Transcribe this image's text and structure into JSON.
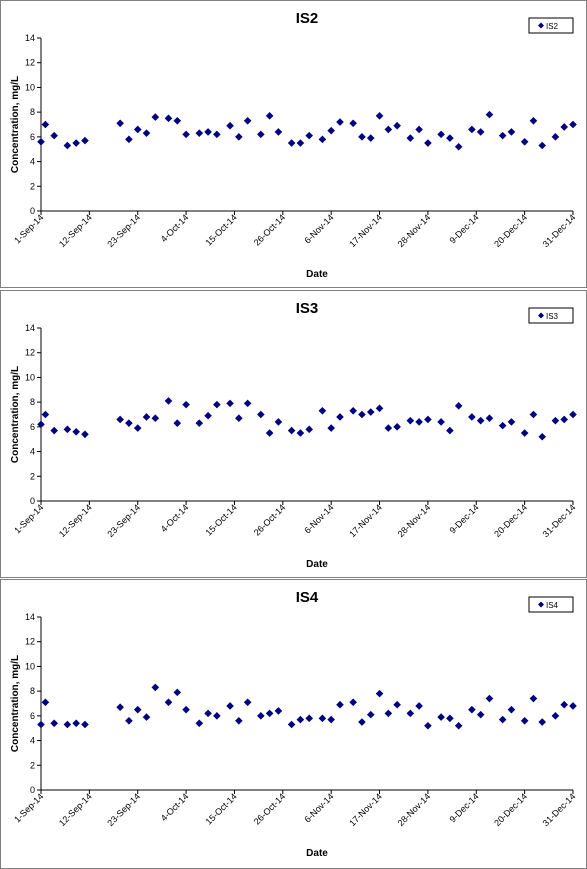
{
  "chart_data": [
    {
      "type": "scatter",
      "title": "IS2",
      "xlabel": "Date",
      "ylabel": "Concentration, mg/L",
      "ylim": [
        0,
        14
      ],
      "yticks": [
        "0",
        "2",
        "4",
        "6",
        "8",
        "10",
        "12",
        "14"
      ],
      "xlim": [
        "1-Sep-14",
        "31-Dec-14"
      ],
      "xticks": [
        "1-Sep-14",
        "12-Sep-14",
        "23-Sep-14",
        "4-Oct-14",
        "15-Oct-14",
        "26-Oct-14",
        "6-Nov-14",
        "17-Nov-14",
        "28-Nov-14",
        "9-Dec-14",
        "20-Dec-14",
        "31-Dec-14"
      ],
      "legend": "top-right",
      "marker_color": "#000080",
      "series": [
        {
          "name": "IS2",
          "points": [
            {
              "x": "1-Sep-14",
              "y": 5.6
            },
            {
              "x": "2-Sep-14",
              "y": 7.0
            },
            {
              "x": "4-Sep-14",
              "y": 6.1
            },
            {
              "x": "7-Sep-14",
              "y": 5.3
            },
            {
              "x": "9-Sep-14",
              "y": 5.5
            },
            {
              "x": "11-Sep-14",
              "y": 5.7
            },
            {
              "x": "19-Sep-14",
              "y": 7.1
            },
            {
              "x": "21-Sep-14",
              "y": 5.8
            },
            {
              "x": "23-Sep-14",
              "y": 6.6
            },
            {
              "x": "25-Sep-14",
              "y": 6.3
            },
            {
              "x": "27-Sep-14",
              "y": 7.6
            },
            {
              "x": "30-Sep-14",
              "y": 7.5
            },
            {
              "x": "2-Oct-14",
              "y": 7.3
            },
            {
              "x": "4-Oct-14",
              "y": 6.2
            },
            {
              "x": "7-Oct-14",
              "y": 6.3
            },
            {
              "x": "9-Oct-14",
              "y": 6.4
            },
            {
              "x": "11-Oct-14",
              "y": 6.2
            },
            {
              "x": "14-Oct-14",
              "y": 6.9
            },
            {
              "x": "16-Oct-14",
              "y": 6.0
            },
            {
              "x": "18-Oct-14",
              "y": 7.3
            },
            {
              "x": "21-Oct-14",
              "y": 6.2
            },
            {
              "x": "23-Oct-14",
              "y": 7.7
            },
            {
              "x": "25-Oct-14",
              "y": 6.4
            },
            {
              "x": "28-Oct-14",
              "y": 5.5
            },
            {
              "x": "30-Oct-14",
              "y": 5.5
            },
            {
              "x": "1-Nov-14",
              "y": 6.1
            },
            {
              "x": "4-Nov-14",
              "y": 5.8
            },
            {
              "x": "6-Nov-14",
              "y": 6.5
            },
            {
              "x": "8-Nov-14",
              "y": 7.2
            },
            {
              "x": "11-Nov-14",
              "y": 7.1
            },
            {
              "x": "13-Nov-14",
              "y": 6.0
            },
            {
              "x": "15-Nov-14",
              "y": 5.9
            },
            {
              "x": "17-Nov-14",
              "y": 7.7
            },
            {
              "x": "19-Nov-14",
              "y": 6.6
            },
            {
              "x": "21-Nov-14",
              "y": 6.9
            },
            {
              "x": "24-Nov-14",
              "y": 5.9
            },
            {
              "x": "26-Nov-14",
              "y": 6.6
            },
            {
              "x": "28-Nov-14",
              "y": 5.5
            },
            {
              "x": "1-Dec-14",
              "y": 6.2
            },
            {
              "x": "3-Dec-14",
              "y": 5.9
            },
            {
              "x": "5-Dec-14",
              "y": 5.2
            },
            {
              "x": "8-Dec-14",
              "y": 6.6
            },
            {
              "x": "10-Dec-14",
              "y": 6.4
            },
            {
              "x": "12-Dec-14",
              "y": 7.8
            },
            {
              "x": "15-Dec-14",
              "y": 6.1
            },
            {
              "x": "17-Dec-14",
              "y": 6.4
            },
            {
              "x": "20-Dec-14",
              "y": 5.6
            },
            {
              "x": "22-Dec-14",
              "y": 7.3
            },
            {
              "x": "24-Dec-14",
              "y": 5.3
            },
            {
              "x": "27-Dec-14",
              "y": 6.0
            },
            {
              "x": "29-Dec-14",
              "y": 6.8
            },
            {
              "x": "31-Dec-14",
              "y": 7.0
            }
          ]
        }
      ]
    },
    {
      "type": "scatter",
      "title": "IS3",
      "xlabel": "Date",
      "ylabel": "Concentration, mg/L",
      "ylim": [
        0,
        14
      ],
      "yticks": [
        "0",
        "2",
        "4",
        "6",
        "8",
        "10",
        "12",
        "14"
      ],
      "xlim": [
        "1-Sep-14",
        "31-Dec-14"
      ],
      "xticks": [
        "1-Sep-14",
        "12-Sep-14",
        "23-Sep-14",
        "4-Oct-14",
        "15-Oct-14",
        "26-Oct-14",
        "6-Nov-14",
        "17-Nov-14",
        "28-Nov-14",
        "9-Dec-14",
        "20-Dec-14",
        "31-Dec-14"
      ],
      "legend": "top-right",
      "marker_color": "#000080",
      "series": [
        {
          "name": "IS3",
          "points": [
            {
              "x": "1-Sep-14",
              "y": 6.2
            },
            {
              "x": "2-Sep-14",
              "y": 7.0
            },
            {
              "x": "4-Sep-14",
              "y": 5.7
            },
            {
              "x": "7-Sep-14",
              "y": 5.8
            },
            {
              "x": "9-Sep-14",
              "y": 5.6
            },
            {
              "x": "11-Sep-14",
              "y": 5.4
            },
            {
              "x": "19-Sep-14",
              "y": 6.6
            },
            {
              "x": "21-Sep-14",
              "y": 6.3
            },
            {
              "x": "23-Sep-14",
              "y": 5.9
            },
            {
              "x": "25-Sep-14",
              "y": 6.8
            },
            {
              "x": "27-Sep-14",
              "y": 6.7
            },
            {
              "x": "30-Sep-14",
              "y": 8.1
            },
            {
              "x": "2-Oct-14",
              "y": 6.3
            },
            {
              "x": "4-Oct-14",
              "y": 7.8
            },
            {
              "x": "7-Oct-14",
              "y": 6.3
            },
            {
              "x": "9-Oct-14",
              "y": 6.9
            },
            {
              "x": "11-Oct-14",
              "y": 7.8
            },
            {
              "x": "14-Oct-14",
              "y": 7.9
            },
            {
              "x": "16-Oct-14",
              "y": 6.7
            },
            {
              "x": "18-Oct-14",
              "y": 7.9
            },
            {
              "x": "21-Oct-14",
              "y": 7.0
            },
            {
              "x": "23-Oct-14",
              "y": 5.5
            },
            {
              "x": "25-Oct-14",
              "y": 6.4
            },
            {
              "x": "28-Oct-14",
              "y": 5.7
            },
            {
              "x": "30-Oct-14",
              "y": 5.5
            },
            {
              "x": "1-Nov-14",
              "y": 5.8
            },
            {
              "x": "4-Nov-14",
              "y": 7.3
            },
            {
              "x": "6-Nov-14",
              "y": 5.9
            },
            {
              "x": "8-Nov-14",
              "y": 6.8
            },
            {
              "x": "11-Nov-14",
              "y": 7.3
            },
            {
              "x": "13-Nov-14",
              "y": 7.0
            },
            {
              "x": "15-Nov-14",
              "y": 7.2
            },
            {
              "x": "17-Nov-14",
              "y": 7.5
            },
            {
              "x": "19-Nov-14",
              "y": 5.9
            },
            {
              "x": "21-Nov-14",
              "y": 6.0
            },
            {
              "x": "24-Nov-14",
              "y": 6.5
            },
            {
              "x": "26-Nov-14",
              "y": 6.4
            },
            {
              "x": "28-Nov-14",
              "y": 6.6
            },
            {
              "x": "1-Dec-14",
              "y": 6.4
            },
            {
              "x": "3-Dec-14",
              "y": 5.7
            },
            {
              "x": "5-Dec-14",
              "y": 7.7
            },
            {
              "x": "8-Dec-14",
              "y": 6.8
            },
            {
              "x": "10-Dec-14",
              "y": 6.5
            },
            {
              "x": "12-Dec-14",
              "y": 6.7
            },
            {
              "x": "15-Dec-14",
              "y": 6.1
            },
            {
              "x": "17-Dec-14",
              "y": 6.4
            },
            {
              "x": "20-Dec-14",
              "y": 5.5
            },
            {
              "x": "22-Dec-14",
              "y": 7.0
            },
            {
              "x": "24-Dec-14",
              "y": 5.2
            },
            {
              "x": "27-Dec-14",
              "y": 6.5
            },
            {
              "x": "29-Dec-14",
              "y": 6.6
            },
            {
              "x": "31-Dec-14",
              "y": 7.0
            }
          ]
        }
      ]
    },
    {
      "type": "scatter",
      "title": "IS4",
      "xlabel": "Date",
      "ylabel": "Concentration, mg/L",
      "ylim": [
        0,
        14
      ],
      "yticks": [
        "0",
        "2",
        "4",
        "6",
        "8",
        "10",
        "12",
        "14"
      ],
      "xlim": [
        "1-Sep-14",
        "31-Dec-14"
      ],
      "xticks": [
        "1-Sep-14",
        "12-Sep-14",
        "23-Sep-14",
        "4-Oct-14",
        "15-Oct-14",
        "26-Oct-14",
        "6-Nov-14",
        "17-Nov-14",
        "28-Nov-14",
        "9-Dec-14",
        "20-Dec-14",
        "31-Dec-14"
      ],
      "legend": "top-right",
      "marker_color": "#000080",
      "series": [
        {
          "name": "IS4",
          "points": [
            {
              "x": "1-Sep-14",
              "y": 5.3
            },
            {
              "x": "2-Sep-14",
              "y": 7.1
            },
            {
              "x": "4-Sep-14",
              "y": 5.4
            },
            {
              "x": "7-Sep-14",
              "y": 5.3
            },
            {
              "x": "9-Sep-14",
              "y": 5.4
            },
            {
              "x": "11-Sep-14",
              "y": 5.3
            },
            {
              "x": "19-Sep-14",
              "y": 6.7
            },
            {
              "x": "21-Sep-14",
              "y": 5.6
            },
            {
              "x": "23-Sep-14",
              "y": 6.5
            },
            {
              "x": "25-Sep-14",
              "y": 5.9
            },
            {
              "x": "27-Sep-14",
              "y": 8.3
            },
            {
              "x": "30-Sep-14",
              "y": 7.1
            },
            {
              "x": "2-Oct-14",
              "y": 7.9
            },
            {
              "x": "4-Oct-14",
              "y": 6.5
            },
            {
              "x": "7-Oct-14",
              "y": 5.4
            },
            {
              "x": "9-Oct-14",
              "y": 6.2
            },
            {
              "x": "11-Oct-14",
              "y": 6.0
            },
            {
              "x": "14-Oct-14",
              "y": 6.8
            },
            {
              "x": "16-Oct-14",
              "y": 5.6
            },
            {
              "x": "18-Oct-14",
              "y": 7.1
            },
            {
              "x": "21-Oct-14",
              "y": 6.0
            },
            {
              "x": "23-Oct-14",
              "y": 6.2
            },
            {
              "x": "25-Oct-14",
              "y": 6.4
            },
            {
              "x": "28-Oct-14",
              "y": 5.3
            },
            {
              "x": "30-Oct-14",
              "y": 5.7
            },
            {
              "x": "1-Nov-14",
              "y": 5.8
            },
            {
              "x": "4-Nov-14",
              "y": 5.8
            },
            {
              "x": "6-Nov-14",
              "y": 5.7
            },
            {
              "x": "8-Nov-14",
              "y": 6.9
            },
            {
              "x": "11-Nov-14",
              "y": 7.1
            },
            {
              "x": "13-Nov-14",
              "y": 5.5
            },
            {
              "x": "15-Nov-14",
              "y": 6.1
            },
            {
              "x": "17-Nov-14",
              "y": 7.8
            },
            {
              "x": "19-Nov-14",
              "y": 6.2
            },
            {
              "x": "21-Nov-14",
              "y": 6.9
            },
            {
              "x": "24-Nov-14",
              "y": 6.2
            },
            {
              "x": "26-Nov-14",
              "y": 6.8
            },
            {
              "x": "28-Nov-14",
              "y": 5.2
            },
            {
              "x": "1-Dec-14",
              "y": 5.9
            },
            {
              "x": "3-Dec-14",
              "y": 5.8
            },
            {
              "x": "5-Dec-14",
              "y": 5.2
            },
            {
              "x": "8-Dec-14",
              "y": 6.5
            },
            {
              "x": "10-Dec-14",
              "y": 6.1
            },
            {
              "x": "12-Dec-14",
              "y": 7.4
            },
            {
              "x": "15-Dec-14",
              "y": 5.7
            },
            {
              "x": "17-Dec-14",
              "y": 6.5
            },
            {
              "x": "20-Dec-14",
              "y": 5.6
            },
            {
              "x": "22-Dec-14",
              "y": 7.4
            },
            {
              "x": "24-Dec-14",
              "y": 5.5
            },
            {
              "x": "27-Dec-14",
              "y": 6.0
            },
            {
              "x": "29-Dec-14",
              "y": 6.9
            },
            {
              "x": "31-Dec-14",
              "y": 6.8
            }
          ]
        }
      ]
    }
  ]
}
